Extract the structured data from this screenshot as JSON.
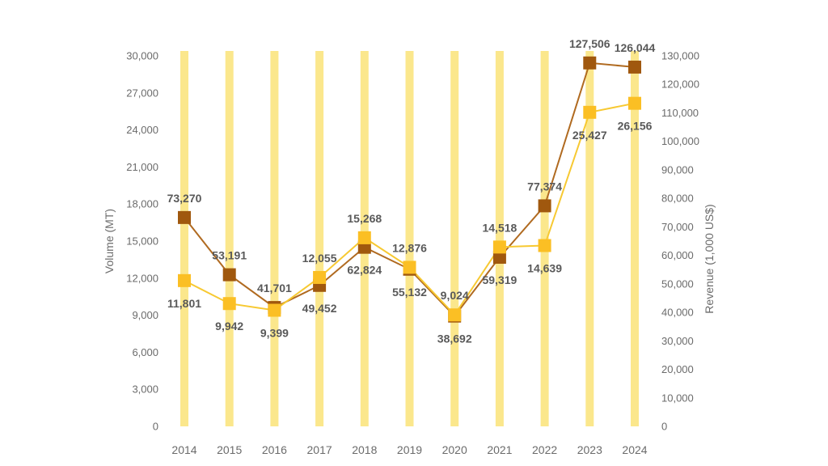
{
  "chart_data": {
    "type": "bar",
    "categories": [
      "2014",
      "2015",
      "2016",
      "2017",
      "2018",
      "2019",
      "2020",
      "2021",
      "2022",
      "2023",
      "2024"
    ],
    "series": [
      {
        "kind": "line",
        "axis": "left",
        "values": [
          11801,
          9942,
          9399,
          12055,
          15268,
          12876,
          9024,
          14518,
          14639,
          25427,
          26156
        ],
        "labels": [
          "11,801",
          "9,942",
          "9,399",
          "12,055",
          "15,268",
          "12,876",
          "9,024",
          "14,518",
          "14,639",
          "25,427",
          "26,156"
        ]
      },
      {
        "kind": "line",
        "axis": "right",
        "values": [
          73270,
          53191,
          41701,
          49452,
          62824,
          55132,
          38692,
          59319,
          77374,
          127506,
          126044
        ],
        "labels": [
          "73,270",
          "53,191",
          "41,701",
          "49,452",
          "62,824",
          "55,132",
          "38,692",
          "59,319",
          "77,374",
          "127,506",
          "126,044"
        ]
      }
    ],
    "left_axis": {
      "label": "Volume (MT)",
      "ylim": [
        0,
        30000
      ],
      "ticks": [
        "0",
        "3,000",
        "6,000",
        "9,000",
        "12,000",
        "15,000",
        "18,000",
        "21,000",
        "24,000",
        "27,000",
        "30,000"
      ]
    },
    "right_axis": {
      "label": "Revenue (1,000 US$)",
      "ylim": [
        0,
        130000
      ],
      "ticks": [
        "0",
        "10,000",
        "20,000",
        "30,000",
        "40,000",
        "50,000",
        "60,000",
        "70,000",
        "80,000",
        "90,000",
        "100,000",
        "110,000",
        "120,000",
        "130,000"
      ]
    },
    "colors": {
      "bars": "#fbe78c",
      "volume": "#fbbf24",
      "volume_line": "#f7c932",
      "revenue": "#a0580e",
      "revenue_line": "#b06a20"
    },
    "grid": false,
    "legend": "none"
  }
}
